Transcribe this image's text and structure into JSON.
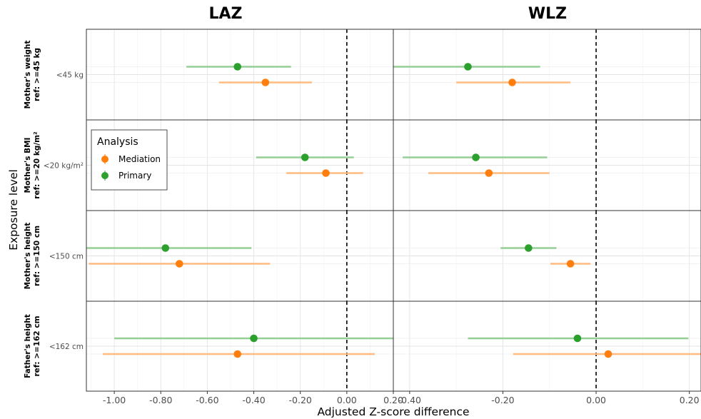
{
  "chart_data": {
    "type": "scatter",
    "subtype": "forest-plot",
    "panels": [
      "LAZ",
      "WLZ"
    ],
    "xlabel": "Adjusted Z-score difference",
    "ylabel": "Exposure level",
    "x_ticks": {
      "LAZ": [
        "-1.00",
        "-0.80",
        "-0.60",
        "-0.40",
        "-0.20",
        "0.00",
        "0.20"
      ],
      "WLZ": [
        "-0.40",
        "-0.20",
        "0.00",
        "0.20"
      ]
    },
    "xlim": {
      "LAZ": [
        -1.12,
        0.2
      ],
      "WLZ": [
        -0.435,
        0.225
      ]
    },
    "reference_line_x": 0,
    "legend": {
      "title": "Analysis",
      "position": "left, inside plot",
      "entries": [
        {
          "name": "Mediation",
          "color": "#ff7f0e"
        },
        {
          "name": "Primary",
          "color": "#2ca02c"
        }
      ]
    },
    "grid": true,
    "colors": {
      "Mediation": "#ff7f0e",
      "Primary": "#2ca02c",
      "Mediation_ci": "#ffbb80",
      "Primary_ci": "#96cf96"
    },
    "rows": [
      {
        "strip": [
          "Mother's weight",
          "ref: >=45 kg"
        ],
        "category": "<45 kg",
        "LAZ": {
          "Primary": {
            "est": -0.47,
            "lo": -0.69,
            "hi": -0.24
          },
          "Mediation": {
            "est": -0.35,
            "lo": -0.55,
            "hi": -0.15
          }
        },
        "WLZ": {
          "Primary": {
            "est": -0.275,
            "lo": -0.435,
            "hi": -0.12
          },
          "Mediation": {
            "est": -0.18,
            "lo": -0.3,
            "hi": -0.055
          }
        }
      },
      {
        "strip": [
          "Mother's BMI",
          "ref: >=20 kg/m²"
        ],
        "category": "<20 kg/m²",
        "LAZ": {
          "Primary": {
            "est": -0.18,
            "lo": -0.39,
            "hi": 0.03
          },
          "Mediation": {
            "est": -0.09,
            "lo": -0.26,
            "hi": 0.07
          }
        },
        "WLZ": {
          "Primary": {
            "est": -0.258,
            "lo": -0.415,
            "hi": -0.105
          },
          "Mediation": {
            "est": -0.23,
            "lo": -0.36,
            "hi": -0.1
          }
        }
      },
      {
        "strip": [
          "Mother's height",
          "ref: >=150 cm"
        ],
        "category": "<150 cm",
        "LAZ": {
          "Primary": {
            "est": -0.78,
            "lo": -1.12,
            "hi": -0.41
          },
          "Mediation": {
            "est": -0.72,
            "lo": -1.11,
            "hi": -0.33
          }
        },
        "WLZ": {
          "Primary": {
            "est": -0.145,
            "lo": -0.205,
            "hi": -0.085
          },
          "Mediation": {
            "est": -0.055,
            "lo": -0.098,
            "hi": -0.012
          }
        }
      },
      {
        "strip": [
          "Father's height",
          "ref: >=162 cm"
        ],
        "category": "<162 cm",
        "LAZ": {
          "Primary": {
            "est": -0.4,
            "lo": -1.0,
            "hi": 0.2
          },
          "Mediation": {
            "est": -0.47,
            "lo": -1.05,
            "hi": 0.12
          }
        },
        "WLZ": {
          "Primary": {
            "est": -0.04,
            "lo": -0.275,
            "hi": 0.198
          },
          "Mediation": {
            "est": 0.026,
            "lo": -0.178,
            "hi": 0.225
          }
        }
      }
    ]
  }
}
